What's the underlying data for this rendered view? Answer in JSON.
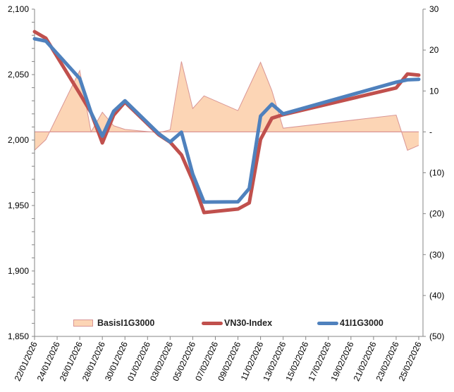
{
  "chart_data": {
    "type": "line",
    "title": "",
    "x": [
      "22/01/2026",
      "23/01/2026",
      "26/01/2026",
      "27/01/2026",
      "28/01/2026",
      "29/01/2026",
      "30/01/2026",
      "02/02/2026",
      "03/02/2026",
      "04/02/2026",
      "05/02/2026",
      "06/02/2026",
      "09/02/2026",
      "10/02/2026",
      "11/02/2026",
      "12/02/2026",
      "13/02/2026",
      "23/02/2026",
      "24/02/2026",
      "25/02/2026"
    ],
    "x_tick_labels": [
      "22/01/2026",
      "24/01/2026",
      "26/01/2026",
      "28/01/2026",
      "30/01/2026",
      "01/02/2026",
      "03/02/2026",
      "05/02/2026",
      "07/02/2026",
      "09/02/2026",
      "11/02/2026",
      "13/02/2026",
      "15/02/2026",
      "17/02/2026",
      "19/02/2026",
      "21/02/2026",
      "23/02/2026",
      "25/02/2026"
    ],
    "x_range": [
      "22/01/2026",
      "25/02/2026"
    ],
    "y_left": {
      "ylim": [
        1850,
        2100
      ],
      "ticks": [
        1850,
        1900,
        1950,
        2000,
        2050,
        2100
      ],
      "tick_labels": [
        "1,850",
        "1,900",
        "1,950",
        "2,000",
        "2,050",
        "2,100"
      ]
    },
    "y_right": {
      "ylim": [
        -50,
        30
      ],
      "ticks": [
        -50,
        -40,
        -30,
        -20,
        -10,
        0,
        10,
        20,
        30
      ],
      "tick_labels": [
        "(50)",
        "(40)",
        "(30)",
        "(20)",
        "(10)",
        "-",
        "10",
        "20",
        "30"
      ]
    },
    "series": [
      {
        "name": "BasisI1G3000",
        "type": "area",
        "axis": "right",
        "color": "#FCD5B5",
        "stroke": "#D99594",
        "values": [
          -4.5,
          -1.9,
          15,
          0,
          4.8,
          1.5,
          0.6,
          -0.2,
          0.5,
          17.2,
          5.7,
          8.8,
          5.2,
          11.1,
          17,
          10.1,
          0.9,
          4.1,
          -4.5,
          -3.3
        ]
      },
      {
        "name": "VN30-Index",
        "type": "line",
        "axis": "left",
        "color": "#C0504D",
        "values": [
          2082.8,
          2077.8,
          2035.5,
          2021,
          1997.8,
          2019,
          2029,
          2004,
          1998.4,
          1988.7,
          1969,
          1944.6,
          1947.3,
          1952,
          2000.5,
          2016.7,
          2019.4,
          2039.8,
          2050.5,
          2049.6
        ]
      },
      {
        "name": "41I1G3000",
        "type": "line",
        "axis": "left",
        "color": "#4F81BD",
        "values": [
          2077.4,
          2075.6,
          2047,
          2021,
          2003,
          2022,
          2030,
          2004.8,
          1998.6,
          2006,
          1974,
          1952.6,
          1952.8,
          1963,
          2018.3,
          2027.4,
          2020,
          2044.2,
          2046,
          2046.4
        ]
      }
    ],
    "legend_position": "bottom-inside",
    "grid": false
  }
}
